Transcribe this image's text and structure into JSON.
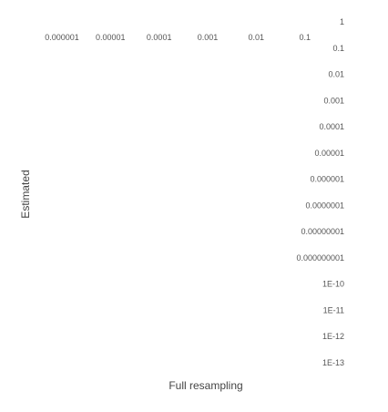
{
  "chart_data": {
    "type": "scatter",
    "xlabel": "Full resampling",
    "ylabel": "Estimated",
    "x_scale": "log",
    "y_scale": "log",
    "xlim": [
      1e-06,
      1
    ],
    "ylim": [
      1e-13,
      1
    ],
    "grid": false,
    "x_ticks": [
      {
        "value": 1e-06,
        "label": "0.000001"
      },
      {
        "value": 1e-05,
        "label": "0.00001"
      },
      {
        "value": 0.0001,
        "label": "0.0001"
      },
      {
        "value": 0.001,
        "label": "0.001"
      },
      {
        "value": 0.01,
        "label": "0.01"
      },
      {
        "value": 0.1,
        "label": "0.1"
      },
      {
        "value": 1,
        "label": "1"
      }
    ],
    "y_ticks": [
      {
        "value": 1,
        "label": "1"
      },
      {
        "value": 0.1,
        "label": "0.1"
      },
      {
        "value": 0.01,
        "label": "0.01"
      },
      {
        "value": 0.001,
        "label": "0.001"
      },
      {
        "value": 0.0001,
        "label": "0.0001"
      },
      {
        "value": 1e-05,
        "label": "0.00001"
      },
      {
        "value": 1e-06,
        "label": "0.000001"
      },
      {
        "value": 1e-07,
        "label": "0.0000001"
      },
      {
        "value": 1e-08,
        "label": "0.00000001"
      },
      {
        "value": 1e-09,
        "label": "0.000000001"
      },
      {
        "value": 1e-10,
        "label": "1E-10"
      },
      {
        "value": 1e-11,
        "label": "1E-11"
      },
      {
        "value": 1e-12,
        "label": "1E-12"
      },
      {
        "value": 1e-13,
        "label": "1E-13"
      }
    ],
    "series": [
      {
        "points": []
      }
    ]
  }
}
